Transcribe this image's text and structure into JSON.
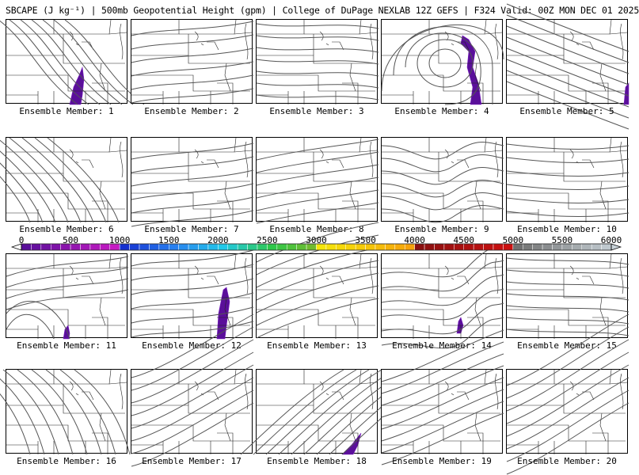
{
  "header": {
    "title": "SBCAPE (J kg⁻¹) | 500mb Geopotential Height (gpm) | College of DuPage NEXLAB 12Z GEFS | F324 Valid: 00Z MON DEC 01 2025"
  },
  "panels": [
    {
      "label": "Ensemble Member: 1"
    },
    {
      "label": "Ensemble Member: 2"
    },
    {
      "label": "Ensemble Member: 3"
    },
    {
      "label": "Ensemble Member: 4"
    },
    {
      "label": "Ensemble Member: 5"
    },
    {
      "label": "Ensemble Member: 6"
    },
    {
      "label": "Ensemble Member: 7"
    },
    {
      "label": "Ensemble Member: 8"
    },
    {
      "label": "Ensemble Member: 9"
    },
    {
      "label": "Ensemble Member: 10"
    },
    {
      "label": "Ensemble Member: 11"
    },
    {
      "label": "Ensemble Member: 12"
    },
    {
      "label": "Ensemble Member: 13"
    },
    {
      "label": "Ensemble Member: 14"
    },
    {
      "label": "Ensemble Member: 15"
    },
    {
      "label": "Ensemble Member: 16"
    },
    {
      "label": "Ensemble Member: 17"
    },
    {
      "label": "Ensemble Member: 18"
    },
    {
      "label": "Ensemble Member: 19"
    },
    {
      "label": "Ensemble Member: 20"
    }
  ],
  "colorbar": {
    "min": 0,
    "max": 6000,
    "ticks": [
      "0",
      "500",
      "1000",
      "1500",
      "2000",
      "2500",
      "3000",
      "3500",
      "4000",
      "4500",
      "5000",
      "5500",
      "6000"
    ],
    "colors": {
      "purple": "#5a0f9a",
      "magenta": "#d21cc8",
      "blue": "#1530d0",
      "cyan": "#22c8e8",
      "green": "#2ec84a",
      "yellow": "#f5e60a",
      "orange": "#f59a0a",
      "red": "#d21010",
      "gray": "#707070",
      "lightgray": "#c8d2d8"
    }
  }
}
